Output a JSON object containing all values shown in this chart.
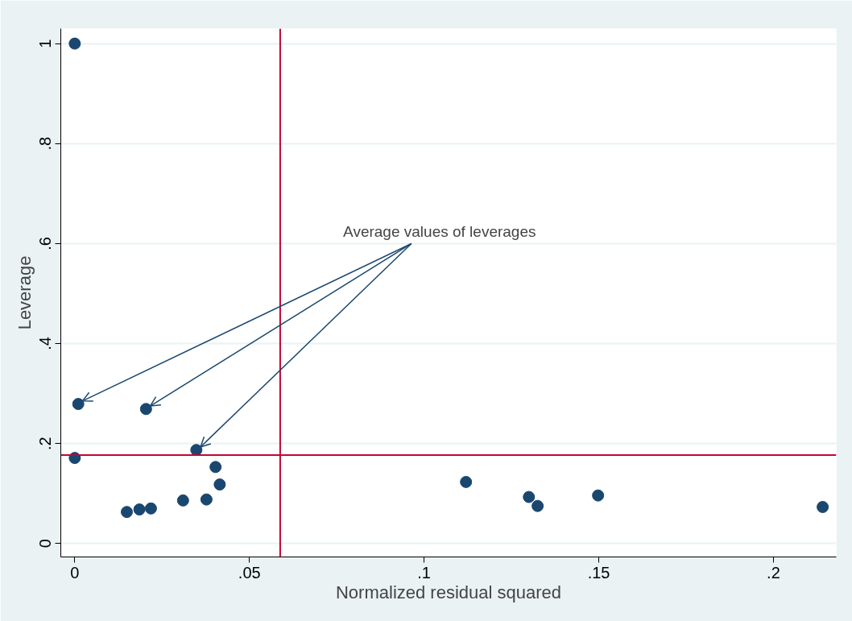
{
  "chart_data": {
    "type": "scatter",
    "xlabel": "Normalized residual squared",
    "ylabel": "Leverage",
    "x": [
      0.0,
      0.001,
      0.0,
      0.0204,
      0.0348,
      0.0403,
      0.0415,
      0.031,
      0.0377,
      0.0149,
      0.0185,
      0.0218,
      0.112,
      0.13,
      0.1325,
      0.1498,
      0.2141
    ],
    "series": [
      {
        "color": "#1a476f",
        "values": [
          1.0,
          0.279,
          0.171,
          0.269,
          0.187,
          0.153,
          0.118,
          0.086,
          0.088,
          0.063,
          0.068,
          0.07,
          0.123,
          0.093,
          0.075,
          0.096,
          0.073
        ]
      }
    ],
    "xlim": [
      -0.004,
      0.218
    ],
    "ylim": [
      -0.027,
      1.03
    ],
    "xticks": [
      0,
      {
        "value": 0.05,
        "label": ".05"
      },
      {
        "value": 0.1,
        "label": ".1"
      },
      {
        "value": 0.15,
        "label": ".15"
      },
      {
        "value": 0.2,
        "label": ".2"
      }
    ],
    "yticks": [
      0,
      {
        "value": 0.2,
        "label": ".2"
      },
      {
        "value": 0.4,
        "label": ".4"
      },
      {
        "value": 0.6,
        "label": ".6"
      },
      {
        "value": 0.8,
        "label": ".8"
      },
      1
    ],
    "ref_lines": [
      {
        "axis": "x",
        "value": 0.0588,
        "color": "#c10534"
      },
      {
        "axis": "y",
        "value": 0.177,
        "color": "#c10534"
      }
    ],
    "annotations": [
      {
        "text": "Average values of leverages",
        "x": 0.0204,
        "y": 0.269
      }
    ],
    "grid": "y",
    "marker": "circle"
  }
}
